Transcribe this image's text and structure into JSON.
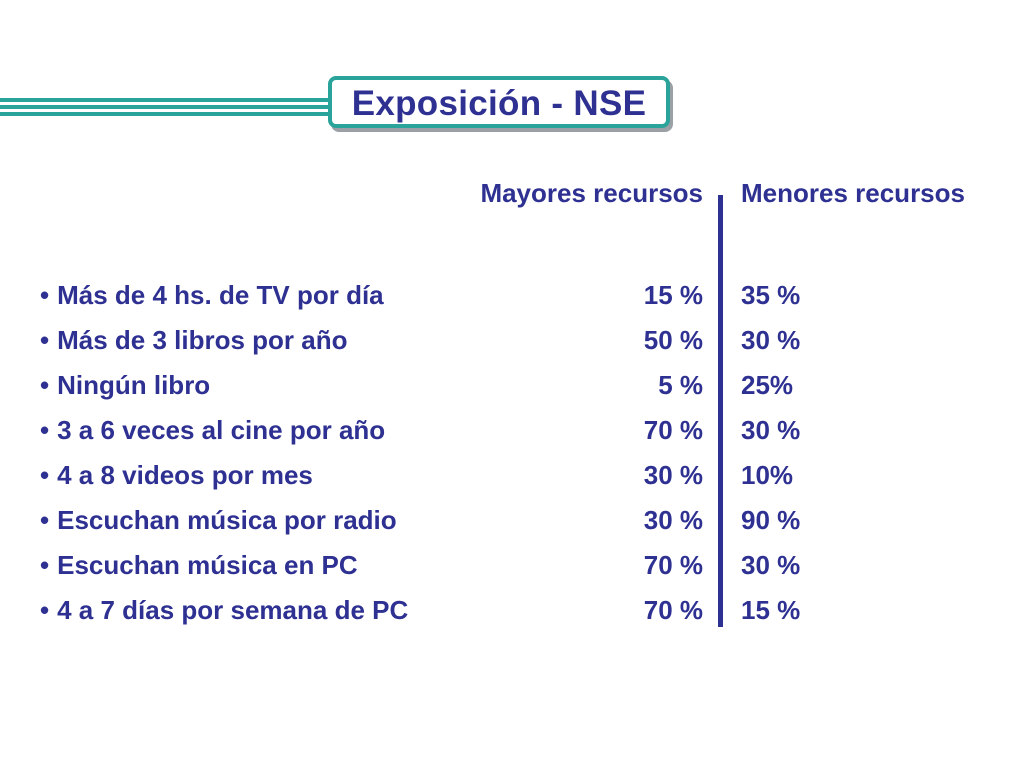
{
  "title": "Exposición - NSE",
  "columns": {
    "major": "Mayores recursos",
    "minor": "Menores recursos"
  },
  "bullet": "•",
  "rows": [
    {
      "label": "Más de 4 hs. de TV por día",
      "major": "15 %",
      "minor": "35 %"
    },
    {
      "label": "Más de 3 libros por año",
      "major": "50 %",
      "minor": "30 %"
    },
    {
      "label": "Ningún libro",
      "major": "5 %",
      "minor": "25%"
    },
    {
      "label": "3 a 6  veces al cine por año",
      "major": "70 %",
      "minor": "30 %"
    },
    {
      "label": "4 a 8 videos por mes",
      "major": "30 %",
      "minor": "10%"
    },
    {
      "label": "Escuchan música por radio",
      "major": "30 %",
      "minor": "90 %"
    },
    {
      "label": "Escuchan música en PC",
      "major": "70 %",
      "minor": "30 %"
    },
    {
      "label": "4 a 7 días por semana de PC",
      "major": "70 %",
      "minor": "15 %"
    }
  ],
  "colors": {
    "text": "#2e3192",
    "accent": "#2aa39a"
  }
}
